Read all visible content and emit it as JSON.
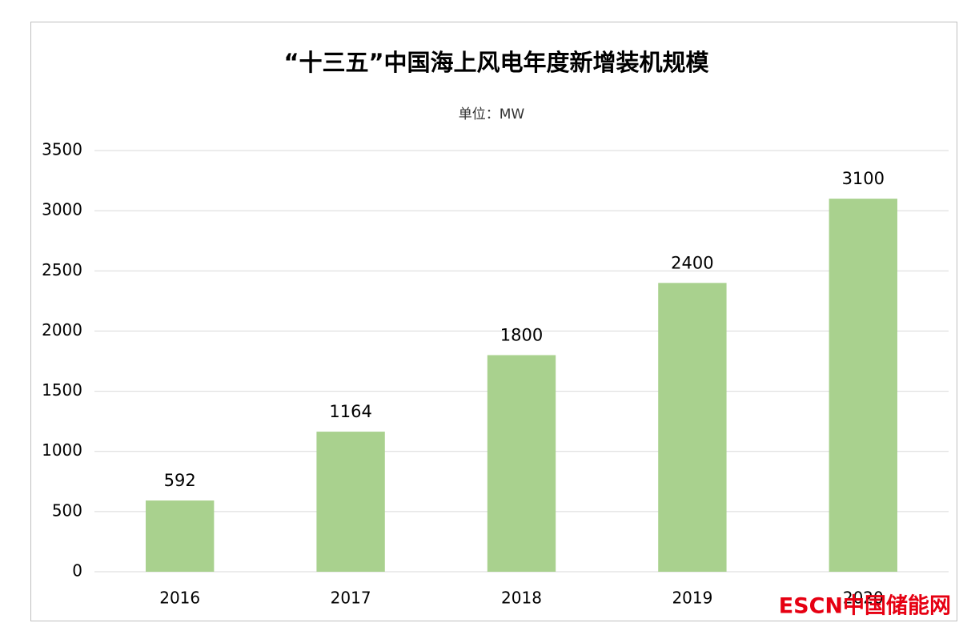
{
  "chart_data": {
    "type": "bar",
    "title": "“十三五”中国海上风电年度新增装机规模",
    "subtitle": "单位：MW",
    "categories": [
      "2016",
      "2017",
      "2018",
      "2019",
      "2020"
    ],
    "values": [
      592,
      1164,
      1800,
      2400,
      3100
    ],
    "color": "#a9d18e",
    "ylim": [
      0,
      3500
    ],
    "yticks": [
      0,
      500,
      1000,
      1500,
      2000,
      2500,
      3000,
      3500
    ],
    "grid": true,
    "watermark": "ESCN中国储能网"
  }
}
